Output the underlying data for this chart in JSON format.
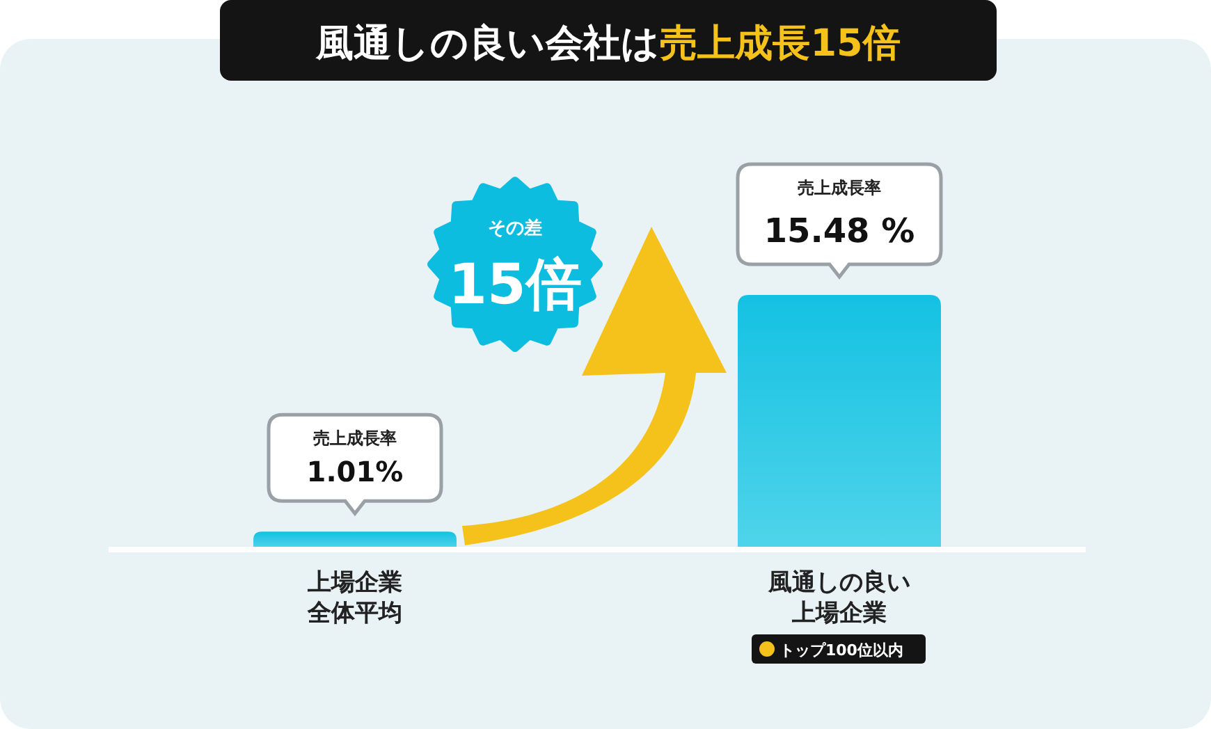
{
  "chart_data": {
    "type": "bar",
    "title": "風通しの良い会社は**売上成長15倍**",
    "categories": [
      "上場企業全体平均",
      "風通しの良い上場企業"
    ],
    "values": [
      1.01,
      15.48
    ],
    "color": "#14c1e2",
    "value_labels": [
      "1.01%",
      "15.48 %"
    ],
    "annotations": [
      "売上成長率",
      "売上成長率",
      "その差\n15倍",
      "トップ100位以内"
    ]
  }
}
